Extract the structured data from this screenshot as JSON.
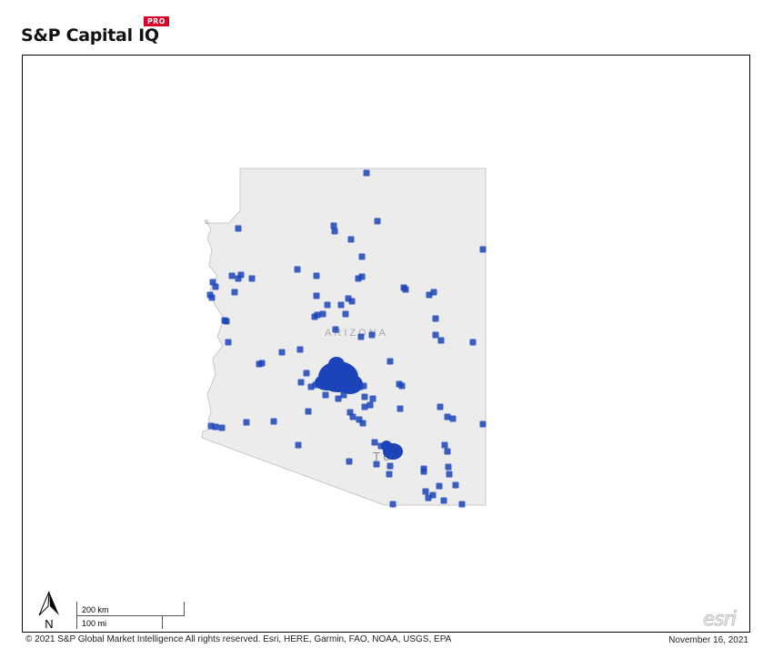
{
  "brand": {
    "name": "S&P Capital IQ",
    "badge": "PRO",
    "badge_color": "#d6002a"
  },
  "map": {
    "state_label": "ARIZONA",
    "city_label_partial": "T   o",
    "edge_label_partial": "s",
    "state_fill": "#ececec",
    "state_stroke": "#c8c8c8",
    "marker_color": "#1a44b8",
    "marker_icon": "square-marker-icon",
    "cluster_names": [
      "phoenix-metro-cluster",
      "tucson-cluster"
    ]
  },
  "north_arrow": {
    "label": "N",
    "icon": "north-arrow-icon"
  },
  "scale_bar": {
    "km_label": "200 km",
    "mi_label": "100 mi"
  },
  "attribution_logo": "esri",
  "footer": {
    "copyright": "© 2021 S&P Global Market Intelligence All rights reserved. Esri, HERE, Garmin, FAO, NOAA, USGS, EPA",
    "date": "November 16, 2021"
  }
}
